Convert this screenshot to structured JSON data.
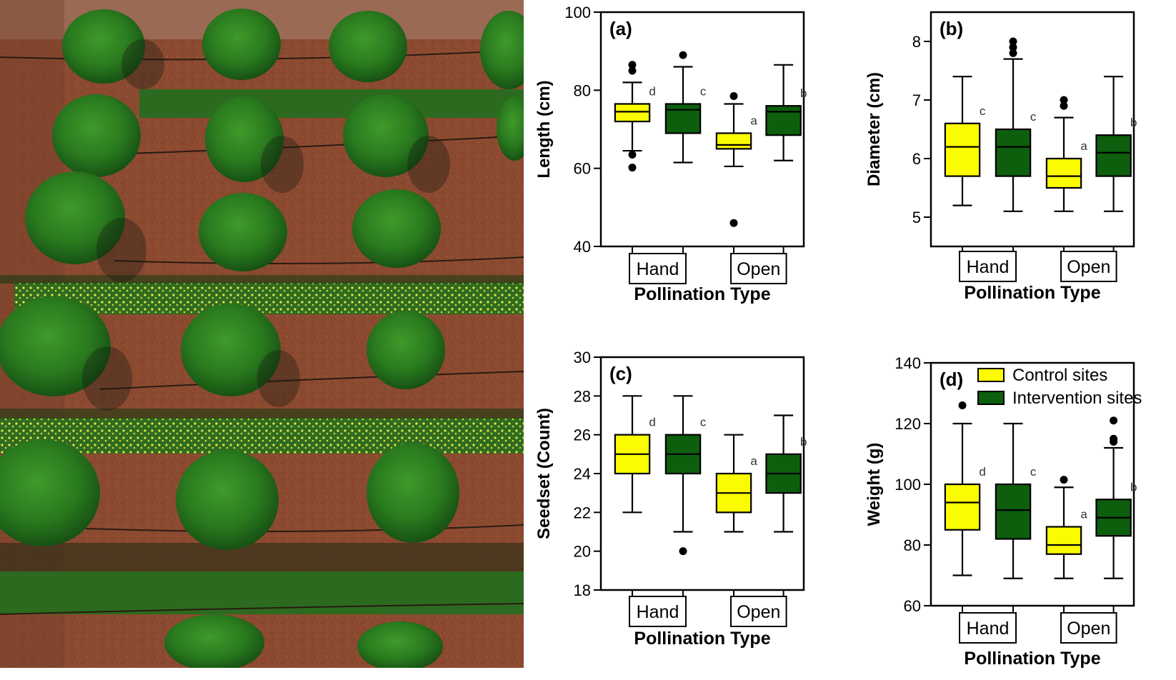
{
  "colors": {
    "control": "#fcfc00",
    "intervention": "#0d5e0d",
    "soil": "#8c4a30",
    "axis": "#000000"
  },
  "photo": {
    "description_icon": "aerial-field-photo-icon"
  },
  "chart_data": [
    {
      "type": "box",
      "panel_label": "(a)",
      "ylabel": "Length (cm)",
      "xlabel": "Pollination Type",
      "categories": [
        "Hand",
        "Open"
      ],
      "ylim": [
        40,
        100
      ],
      "yticks": [
        40,
        60,
        80,
        100
      ],
      "legend": null,
      "series": [
        {
          "name": "Control sites",
          "boxes": [
            {
              "min": 64.5,
              "q1": 72,
              "median": 74.5,
              "q3": 76.5,
              "max": 82,
              "outliers": [
                60.2,
                63.5,
                85,
                86.5
              ],
              "letter": "d"
            },
            {
              "min": 60.5,
              "q1": 65,
              "median": 66,
              "q3": 69,
              "max": 76.5,
              "outliers": [
                46,
                78.5
              ],
              "letter": "a"
            }
          ]
        },
        {
          "name": "Intervention sites",
          "boxes": [
            {
              "min": 61.5,
              "q1": 69,
              "median": 75,
              "q3": 76.5,
              "max": 86,
              "outliers": [
                89
              ],
              "letter": "c"
            },
            {
              "min": 62,
              "q1": 68.5,
              "median": 74.5,
              "q3": 76,
              "max": 86.5,
              "outliers": [],
              "letter": "b"
            }
          ]
        }
      ]
    },
    {
      "type": "box",
      "panel_label": "(b)",
      "ylabel": "Diameter (cm)",
      "xlabel": "Pollination Type",
      "categories": [
        "Hand",
        "Open"
      ],
      "ylim": [
        4.5,
        8.5
      ],
      "yticks": [
        5,
        6,
        7,
        8
      ],
      "legend": null,
      "series": [
        {
          "name": "Control sites",
          "boxes": [
            {
              "min": 5.2,
              "q1": 5.7,
              "median": 6.2,
              "q3": 6.6,
              "max": 7.4,
              "outliers": [],
              "letter": "c"
            },
            {
              "min": 5.1,
              "q1": 5.5,
              "median": 5.7,
              "q3": 6.0,
              "max": 6.7,
              "outliers": [
                6.9,
                7.0
              ],
              "letter": "a"
            }
          ]
        },
        {
          "name": "Intervention sites",
          "boxes": [
            {
              "min": 5.1,
              "q1": 5.7,
              "median": 6.2,
              "q3": 6.5,
              "max": 7.7,
              "outliers": [
                7.8,
                7.9,
                8.0
              ],
              "letter": "c"
            },
            {
              "min": 5.1,
              "q1": 5.7,
              "median": 6.1,
              "q3": 6.4,
              "max": 7.4,
              "outliers": [],
              "letter": "b"
            }
          ]
        }
      ]
    },
    {
      "type": "box",
      "panel_label": "(c)",
      "ylabel": "Seedset (Count)",
      "xlabel": "Pollination Type",
      "categories": [
        "Hand",
        "Open"
      ],
      "ylim": [
        18,
        30
      ],
      "yticks": [
        18,
        20,
        22,
        24,
        26,
        28,
        30
      ],
      "legend": null,
      "series": [
        {
          "name": "Control sites",
          "boxes": [
            {
              "min": 22,
              "q1": 24,
              "median": 25,
              "q3": 26,
              "max": 28,
              "outliers": [],
              "letter": "d"
            },
            {
              "min": 21,
              "q1": 22,
              "median": 23,
              "q3": 24,
              "max": 26,
              "outliers": [],
              "letter": "a"
            }
          ]
        },
        {
          "name": "Intervention sites",
          "boxes": [
            {
              "min": 21,
              "q1": 24,
              "median": 25,
              "q3": 26,
              "max": 28,
              "outliers": [
                20
              ],
              "letter": "c"
            },
            {
              "min": 21,
              "q1": 23,
              "median": 24,
              "q3": 25,
              "max": 27,
              "outliers": [],
              "letter": "b"
            }
          ]
        }
      ]
    },
    {
      "type": "box",
      "panel_label": "(d)",
      "ylabel": "Weight (g)",
      "xlabel": "Pollination Type",
      "categories": [
        "Hand",
        "Open"
      ],
      "ylim": [
        60,
        140
      ],
      "yticks": [
        60,
        80,
        100,
        120,
        140
      ],
      "legend": {
        "placement": "top-right",
        "entries": [
          "Control sites",
          "Intervention sites"
        ]
      },
      "series": [
        {
          "name": "Control sites",
          "boxes": [
            {
              "min": 70,
              "q1": 85,
              "median": 94,
              "q3": 100,
              "max": 120,
              "outliers": [
                126
              ],
              "letter": "d"
            },
            {
              "min": 69,
              "q1": 77,
              "median": 80,
              "q3": 86,
              "max": 99,
              "outliers": [
                101.5
              ],
              "letter": "a"
            }
          ]
        },
        {
          "name": "Intervention sites",
          "boxes": [
            {
              "min": 69,
              "q1": 82,
              "median": 91.5,
              "q3": 100,
              "max": 120,
              "outliers": [],
              "letter": "c"
            },
            {
              "min": 69,
              "q1": 83,
              "median": 89,
              "q3": 95,
              "max": 112,
              "outliers": [
                114,
                115,
                121
              ],
              "letter": "b"
            }
          ]
        }
      ]
    }
  ]
}
